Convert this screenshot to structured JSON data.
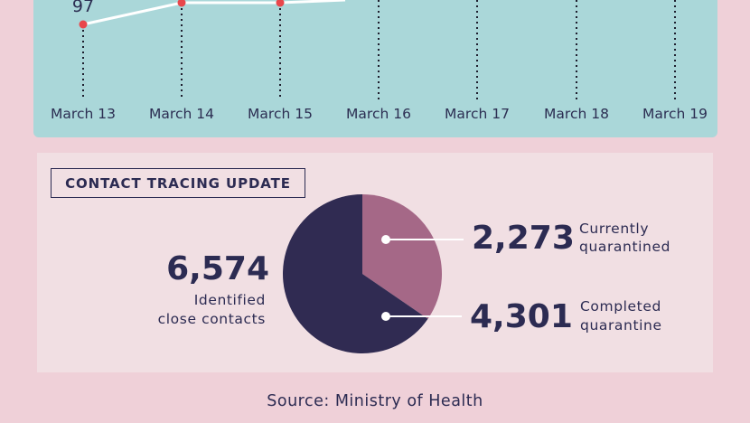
{
  "line_chart": {
    "x_labels": [
      "March 13",
      "March 14",
      "March 15",
      "March 16",
      "March 17",
      "March 18",
      "March 19"
    ],
    "visible_value_label": "97",
    "colors": {
      "line": "#ffffff",
      "point": "#e8474c",
      "panel": "#aad7d9",
      "dotted": "#1e1e2e"
    }
  },
  "contact_tracing": {
    "title": "CONTACT TRACING UPDATE",
    "total_value": "6,574",
    "total_label_line1": "Identified",
    "total_label_line2": "close contacts",
    "segments": [
      {
        "value": "2,273",
        "label_line1": "Currently",
        "label_line2": "quarantined",
        "color": "#a56887"
      },
      {
        "value": "4,301",
        "label_line1": "Completed",
        "label_line2": "quarantine",
        "color": "#302b52"
      }
    ]
  },
  "source": "Source: Ministry of Health",
  "chart_data": [
    {
      "type": "line",
      "x": [
        "March 13",
        "March 14",
        "March 15"
      ],
      "series": [
        {
          "values": [
            97,
            null,
            null
          ]
        }
      ],
      "data_labels": [
        "97"
      ],
      "grid": false
    },
    {
      "type": "pie",
      "title": "CONTACT TRACING UPDATE",
      "total": 6574,
      "total_label": "Identified close contacts",
      "categories": [
        "Currently quarantined",
        "Completed quarantine"
      ],
      "values": [
        2273,
        4301
      ]
    }
  ]
}
